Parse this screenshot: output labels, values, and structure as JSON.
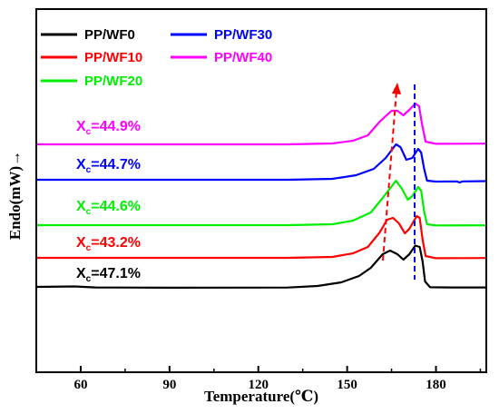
{
  "chart_data": {
    "type": "line",
    "title": "",
    "xlabel": "Temperature(℃)",
    "ylabel": "Endo(mW)→",
    "xlim": [
      45,
      197
    ],
    "x_ticks": [
      "60",
      "90",
      "120",
      "150",
      "180"
    ],
    "y_ticks": [],
    "grid": false,
    "legend_placement": "top-left",
    "series": [
      {
        "name": "PP/WF0",
        "color": "#000000",
        "xc_label": "X",
        "xc_sub": "c",
        "xc_value": "=47.1%",
        "points": [
          [
            45,
            0
          ],
          [
            58,
            0.5
          ],
          [
            65,
            -0.6
          ],
          [
            90,
            -0.9
          ],
          [
            130,
            -0.7
          ],
          [
            140,
            1.0
          ],
          [
            148,
            5.0
          ],
          [
            154,
            12.0
          ],
          [
            158,
            21.0
          ],
          [
            162,
            36.0
          ],
          [
            164.5,
            40.0
          ],
          [
            167,
            36.0
          ],
          [
            169,
            30.0
          ],
          [
            171,
            36.0
          ],
          [
            173,
            45.5
          ],
          [
            174.5,
            44.0
          ],
          [
            175.5,
            28.0
          ],
          [
            176.3,
            6.0
          ],
          [
            178,
            -0.4
          ],
          [
            185,
            -0.6
          ],
          [
            197,
            -0.6
          ]
        ]
      },
      {
        "name": "PP/WF10",
        "color": "#ff0000",
        "xc_label": "X",
        "xc_sub": "c",
        "xc_value": "=43.2%",
        "points": [
          [
            45,
            0
          ],
          [
            80,
            0
          ],
          [
            130,
            0
          ],
          [
            145,
            1.0
          ],
          [
            152,
            5.0
          ],
          [
            157,
            12.0
          ],
          [
            161,
            28.0
          ],
          [
            163.5,
            42.0
          ],
          [
            165.5,
            44.0
          ],
          [
            167.5,
            38.0
          ],
          [
            169.5,
            27.0
          ],
          [
            171,
            32.0
          ],
          [
            173.5,
            46.0
          ],
          [
            174.5,
            44.0
          ],
          [
            175.5,
            20.0
          ],
          [
            176.5,
            2.0
          ],
          [
            180,
            -0.4
          ],
          [
            197,
            -0.2
          ]
        ]
      },
      {
        "name": "PP/WF20",
        "color": "#00ee00",
        "xc_label": "X",
        "xc_sub": "c",
        "xc_value": "=44.6%",
        "points": [
          [
            45,
            0
          ],
          [
            80,
            0
          ],
          [
            130,
            0
          ],
          [
            145,
            1.0
          ],
          [
            152,
            5.0
          ],
          [
            158,
            14.0
          ],
          [
            162,
            30.0
          ],
          [
            166.5,
            49.0
          ],
          [
            168.5,
            40.0
          ],
          [
            170.5,
            28.0
          ],
          [
            172,
            32.0
          ],
          [
            174,
            42.0
          ],
          [
            175,
            38.0
          ],
          [
            176,
            15.0
          ],
          [
            177,
            1.0
          ],
          [
            180,
            -0.3
          ],
          [
            197,
            -0.2
          ]
        ]
      },
      {
        "name": "PP/WF30",
        "color": "#0000ff",
        "xc_label": "X",
        "xc_sub": "c",
        "xc_value": "=44.7%",
        "points": [
          [
            45,
            0
          ],
          [
            80,
            0
          ],
          [
            130,
            0
          ],
          [
            145,
            1.0
          ],
          [
            153,
            5.0
          ],
          [
            159,
            12.0
          ],
          [
            163,
            24.0
          ],
          [
            166.5,
            39.0
          ],
          [
            168,
            36.0
          ],
          [
            170,
            22.0
          ],
          [
            172,
            24.0
          ],
          [
            174,
            34.0
          ],
          [
            175,
            30.0
          ],
          [
            176,
            12.0
          ],
          [
            177,
            -1.0
          ],
          [
            180,
            -2.0
          ],
          [
            187,
            -1.8
          ],
          [
            188,
            -3.0
          ],
          [
            189,
            -1.8
          ],
          [
            197,
            -1.5
          ]
        ]
      },
      {
        "name": "PP/WF40",
        "color": "#ff00ff",
        "xc_label": "X",
        "xc_sub": "c",
        "xc_value": "=44.9%",
        "points": [
          [
            45,
            0
          ],
          [
            80,
            0
          ],
          [
            130,
            0
          ],
          [
            145,
            1.0
          ],
          [
            152,
            4.0
          ],
          [
            157,
            10.0
          ],
          [
            161,
            25.0
          ],
          [
            165,
            37.0
          ],
          [
            167,
            37.0
          ],
          [
            169,
            32.0
          ],
          [
            171,
            38.0
          ],
          [
            173,
            45.0
          ],
          [
            174.3,
            42.0
          ],
          [
            175.3,
            22.0
          ],
          [
            176.5,
            3.0
          ],
          [
            180,
            0.6
          ],
          [
            197,
            0.8
          ]
        ]
      }
    ]
  }
}
